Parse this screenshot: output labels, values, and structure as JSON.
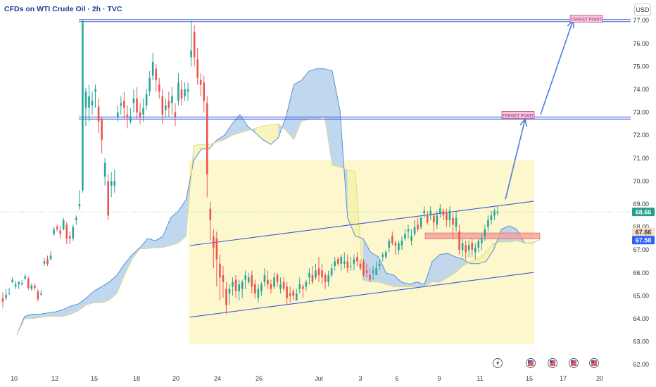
{
  "header": {
    "title": "CFDs on WTI Crude Oil · 2h · TVC",
    "currency": "USD"
  },
  "chart_data": {
    "type": "candlestick",
    "title": "CFDs on WTI Crude Oil · 2h · TVC",
    "y_ticks": [
      "77.00",
      "76.00",
      "75.00",
      "74.00",
      "73.00",
      "72.00",
      "71.00",
      "70.00",
      "69.00",
      "68.00",
      "67.00",
      "66.00",
      "65.00",
      "64.00",
      "63.00",
      "62.00"
    ],
    "x_ticks": [
      "10",
      "12",
      "15",
      "18",
      "20",
      "24",
      "26",
      "Jul",
      "3",
      "6",
      "9",
      "11",
      "15",
      "17",
      "20"
    ],
    "ylim": [
      62,
      77.5
    ],
    "price_labels": [
      {
        "text": "68.66",
        "value": 68.66,
        "color": "#22a08a"
      },
      {
        "text": "67.66",
        "value": 67.66,
        "color": "#f6dcc8"
      },
      {
        "text": "67.58",
        "value": 67.58,
        "color": "#2962ff"
      }
    ],
    "annotations": [
      {
        "text": "TARGET POINT",
        "value": 72.85,
        "color": "#d14a8a"
      },
      {
        "text": "TARGET POINT",
        "value": 77.05,
        "color": "#d14a8a"
      }
    ],
    "resistance_levels": [
      72.75,
      77.0
    ],
    "current_price": 68.66,
    "support_zone": [
      67.48,
      67.74
    ],
    "series": [
      {
        "name": "",
        "ohlc": [
          [
            64.9,
            64.75,
            65.15,
            64.5
          ],
          [
            64.9,
            65.05,
            65.3,
            64.8
          ],
          [
            65.1,
            65.1,
            65.35,
            65.05
          ],
          [
            65.6,
            65.7,
            65.8,
            65.55
          ],
          [
            65.4,
            65.5,
            65.65,
            65.3
          ],
          [
            65.5,
            65.6,
            65.65,
            65.3
          ],
          [
            65.5,
            65.55,
            65.7,
            65.45
          ],
          [
            65.75,
            65.85,
            65.95,
            65.7
          ],
          [
            65.75,
            65.35,
            65.85,
            65.25
          ],
          [
            65.3,
            65.45,
            65.55,
            65.2
          ],
          [
            65.45,
            65.35,
            65.55,
            65.25
          ],
          [
            65.2,
            64.85,
            65.3,
            64.75
          ],
          [
            65.05,
            65.1,
            65.25,
            65.0
          ],
          [
            66.4,
            66.5,
            66.65,
            66.3
          ],
          [
            66.6,
            66.4,
            66.75,
            66.3
          ],
          [
            66.6,
            66.75,
            66.95,
            66.55
          ],
          [
            67.7,
            67.9,
            68.0,
            67.6
          ],
          [
            68.0,
            67.9,
            68.1,
            67.8
          ],
          [
            67.85,
            67.7,
            68.05,
            67.5
          ],
          [
            67.9,
            68.3,
            68.4,
            67.85
          ],
          [
            68.1,
            67.5,
            68.2,
            67.25
          ],
          [
            67.6,
            67.5,
            67.8,
            67.25
          ],
          [
            67.5,
            68.0,
            68.1,
            67.4
          ],
          [
            68.3,
            68.4,
            68.5,
            68.1
          ],
          [
            68.9,
            69.0,
            69.6,
            68.75
          ],
          [
            69.6,
            77.0,
            77.0,
            69.5
          ],
          [
            73.2,
            73.9,
            74.05,
            72.4
          ],
          [
            73.2,
            73.7,
            74.2,
            72.6
          ],
          [
            73.3,
            73.5,
            73.9,
            72.9
          ],
          [
            73.9,
            74.0,
            74.2,
            73.2
          ],
          [
            73.25,
            72.6,
            73.6,
            72.1
          ],
          [
            72.7,
            71.8,
            72.8,
            71.2
          ],
          [
            70.2,
            70.8,
            71.0,
            69.8
          ],
          [
            70.0,
            68.5,
            70.3,
            68.3
          ],
          [
            69.8,
            70.0,
            70.4,
            69.3
          ],
          [
            69.8,
            70.0,
            70.5,
            69.5
          ],
          [
            72.8,
            73.0,
            73.3,
            72.6
          ],
          [
            73.3,
            73.4,
            73.7,
            72.9
          ],
          [
            73.5,
            73.2,
            73.9,
            72.7
          ],
          [
            72.9,
            72.8,
            73.3,
            72.3
          ],
          [
            72.6,
            72.8,
            73.2,
            72.5
          ],
          [
            73.4,
            73.6,
            74.0,
            73.0
          ],
          [
            73.6,
            73.0,
            74.1,
            72.7
          ],
          [
            73.0,
            72.8,
            73.4,
            72.5
          ],
          [
            72.9,
            73.2,
            73.6,
            72.6
          ],
          [
            73.3,
            73.8,
            74.0,
            73.1
          ],
          [
            73.9,
            74.5,
            74.8,
            73.7
          ],
          [
            74.6,
            75.2,
            75.6,
            74.4
          ],
          [
            74.9,
            74.4,
            75.1,
            73.9
          ],
          [
            74.2,
            73.9,
            74.5,
            73.6
          ],
          [
            73.7,
            72.9,
            74.0,
            72.5
          ],
          [
            73.1,
            73.3,
            73.6,
            72.8
          ],
          [
            73.5,
            73.2,
            73.9,
            72.8
          ],
          [
            73.4,
            73.7,
            74.1,
            72.9
          ],
          [
            73.0,
            72.8,
            73.4,
            72.4
          ],
          [
            73.5,
            74.3,
            74.7,
            73.3
          ],
          [
            74.0,
            73.6,
            74.4,
            73.3
          ],
          [
            73.7,
            74.0,
            74.3,
            73.5
          ],
          [
            73.9,
            74.0,
            74.3,
            73.5
          ],
          [
            75.4,
            75.7,
            77.0,
            75.0
          ],
          [
            76.5,
            75.4,
            76.8,
            75.0
          ],
          [
            75.3,
            74.5,
            75.8,
            74.2
          ],
          [
            74.4,
            74.2,
            74.7,
            73.7
          ],
          [
            74.3,
            73.5,
            74.6,
            73.0
          ],
          [
            73.4,
            70.3,
            73.7,
            69.3
          ],
          [
            68.8,
            68.3,
            69.1,
            67.4
          ],
          [
            67.6,
            67.1,
            67.9,
            66.2
          ],
          [
            67.5,
            66.6,
            67.8,
            65.4
          ],
          [
            66.4,
            65.8,
            66.8,
            64.8
          ],
          [
            65.9,
            65.6,
            66.3,
            64.9
          ],
          [
            65.3,
            64.6,
            65.6,
            64.2
          ],
          [
            65.1,
            65.3,
            65.5,
            64.6
          ],
          [
            65.4,
            65.6,
            65.8,
            65.0
          ],
          [
            65.7,
            65.2,
            65.9,
            64.9
          ],
          [
            65.2,
            65.5,
            65.7,
            64.8
          ],
          [
            65.3,
            65.6,
            65.7,
            64.9
          ],
          [
            65.7,
            65.9,
            66.1,
            65.3
          ],
          [
            65.6,
            65.8,
            66.0,
            65.5
          ],
          [
            65.9,
            65.4,
            66.1,
            65.1
          ],
          [
            65.5,
            65.1,
            65.7,
            64.9
          ],
          [
            64.9,
            65.3,
            65.5,
            64.7
          ],
          [
            65.2,
            65.5,
            65.6,
            65.0
          ],
          [
            65.6,
            65.9,
            66.2,
            65.4
          ],
          [
            65.7,
            65.5,
            66.1,
            65.3
          ],
          [
            65.5,
            65.3,
            65.7,
            65.1
          ],
          [
            65.4,
            65.8,
            66.0,
            65.3
          ],
          [
            65.9,
            65.6,
            66.0,
            65.4
          ],
          [
            65.3,
            65.5,
            65.8,
            65.1
          ],
          [
            65.6,
            65.3,
            65.8,
            65.2
          ],
          [
            65.4,
            64.9,
            65.6,
            64.6
          ],
          [
            65.1,
            65.0,
            65.4,
            64.7
          ],
          [
            65.2,
            65.0,
            65.3,
            64.8
          ],
          [
            64.8,
            65.1,
            65.3,
            64.8
          ],
          [
            65.3,
            65.5,
            65.8,
            65.1
          ],
          [
            65.4,
            65.3,
            65.5,
            64.9
          ],
          [
            65.4,
            65.6,
            65.7,
            65.2
          ],
          [
            65.8,
            66.0,
            66.2,
            65.5
          ],
          [
            65.9,
            65.6,
            66.3,
            65.5
          ],
          [
            65.8,
            66.1,
            66.4,
            65.7
          ],
          [
            66.2,
            65.9,
            66.7,
            65.6
          ],
          [
            66.1,
            65.8,
            66.4,
            65.5
          ],
          [
            65.9,
            65.6,
            66.0,
            65.3
          ],
          [
            65.6,
            65.9,
            66.1,
            65.4
          ],
          [
            65.9,
            66.2,
            66.4,
            65.8
          ],
          [
            66.3,
            66.5,
            66.7,
            66.1
          ],
          [
            66.6,
            66.4,
            66.7,
            66.3
          ],
          [
            66.4,
            66.7,
            66.8,
            66.1
          ],
          [
            66.4,
            66.5,
            66.9,
            66.2
          ],
          [
            66.5,
            66.2,
            66.8,
            66.0
          ],
          [
            66.3,
            66.3,
            66.7,
            66.1
          ],
          [
            66.4,
            66.6,
            66.8,
            66.1
          ],
          [
            66.7,
            66.5,
            66.9,
            66.3
          ],
          [
            66.4,
            66.2,
            66.6,
            66.1
          ],
          [
            66.5,
            65.9,
            66.6,
            65.8
          ],
          [
            66.1,
            66.0,
            66.4,
            65.8
          ],
          [
            65.9,
            65.7,
            66.2,
            65.6
          ],
          [
            66.0,
            66.1,
            66.3,
            65.7
          ],
          [
            65.9,
            66.2,
            66.5,
            65.9
          ],
          [
            66.3,
            66.4,
            66.6,
            66.1
          ],
          [
            66.7,
            66.8,
            66.9,
            66.5
          ],
          [
            66.7,
            66.9,
            67.0,
            66.6
          ],
          [
            67.1,
            67.4,
            67.5,
            66.9
          ],
          [
            67.6,
            67.3,
            67.8,
            67.2
          ],
          [
            67.3,
            67.2,
            67.4,
            66.8
          ],
          [
            67.0,
            67.3,
            67.4,
            66.8
          ],
          [
            67.2,
            67.4,
            67.6,
            67.0
          ],
          [
            67.5,
            67.7,
            67.9,
            67.4
          ],
          [
            67.8,
            67.9,
            68.1,
            67.5
          ],
          [
            67.4,
            67.6,
            67.9,
            67.2
          ],
          [
            67.7,
            68.0,
            68.3,
            67.6
          ],
          [
            68.1,
            67.9,
            68.4,
            67.8
          ],
          [
            68.0,
            68.4,
            68.5,
            67.9
          ],
          [
            68.6,
            68.7,
            68.9,
            68.4
          ],
          [
            68.5,
            68.2,
            68.7,
            68.1
          ],
          [
            68.5,
            68.7,
            68.9,
            68.3
          ],
          [
            68.5,
            68.2,
            68.6,
            67.8
          ],
          [
            68.1,
            68.5,
            68.7,
            67.9
          ],
          [
            68.6,
            68.8,
            69.0,
            68.4
          ],
          [
            68.7,
            68.5,
            68.8,
            68.3
          ],
          [
            68.6,
            68.3,
            68.8,
            68.0
          ],
          [
            68.3,
            68.7,
            68.9,
            68.0
          ],
          [
            68.4,
            68.1,
            68.6,
            67.5
          ],
          [
            68.0,
            68.4,
            68.7,
            67.8
          ],
          [
            67.8,
            67.0,
            68.1,
            66.8
          ],
          [
            67.0,
            67.3,
            67.5,
            66.7
          ],
          [
            67.2,
            66.9,
            67.4,
            66.6
          ],
          [
            67.0,
            67.2,
            67.4,
            66.7
          ],
          [
            67.3,
            67.0,
            67.5,
            66.7
          ],
          [
            66.9,
            67.1,
            67.3,
            66.6
          ],
          [
            67.1,
            67.4,
            67.5,
            66.9
          ],
          [
            67.3,
            67.5,
            67.7,
            67.0
          ],
          [
            67.6,
            67.9,
            68.1,
            67.4
          ],
          [
            68.0,
            68.3,
            68.5,
            67.8
          ],
          [
            68.3,
            68.5,
            68.7,
            68.1
          ],
          [
            68.5,
            68.7,
            68.8,
            68.3
          ],
          [
            68.6,
            68.66,
            68.9,
            68.5
          ]
        ]
      }
    ],
    "cloud": {
      "span_a": [
        63.3,
        64.1,
        64.2,
        64.2,
        64.25,
        64.3,
        64.4,
        64.55,
        64.65,
        64.9,
        65.2,
        65.4,
        65.6,
        65.9,
        66.4,
        66.8,
        67.1,
        67.5,
        67.4,
        67.6,
        68.4,
        68.7,
        69.2,
        70.9,
        71.4,
        71.4,
        71.8,
        72.0,
        72.5,
        72.9,
        72.4,
        72.1,
        71.8,
        71.6,
        71.9,
        72.8,
        74.2,
        74.4,
        74.8,
        74.9,
        74.9,
        74.8,
        73.1,
        68.4,
        67.6,
        67.5,
        66.9,
        66.7,
        66.0,
        65.9,
        65.6,
        65.5,
        65.6,
        65.5,
        66.5,
        66.8,
        66.85,
        66.7,
        66.6,
        66.4,
        66.4,
        66.5,
        67.0,
        67.9,
        68.05,
        67.9,
        67.3,
        67.3,
        67.45
      ],
      "span_b": [
        63.3,
        64.0,
        64.0,
        64.05,
        64.1,
        64.1,
        64.1,
        64.2,
        64.35,
        64.6,
        64.7,
        64.7,
        64.8,
        65.1,
        65.9,
        66.6,
        67.05,
        67.05,
        67.1,
        67.1,
        67.2,
        67.3,
        67.6,
        71.55,
        71.6,
        71.6,
        71.7,
        71.8,
        72.0,
        72.1,
        72.2,
        72.3,
        72.4,
        72.45,
        72.5,
        72.2,
        71.8,
        72.6,
        72.7,
        72.7,
        72.8,
        70.7,
        70.6,
        70.5,
        70.4,
        65.7,
        65.6,
        65.6,
        65.5,
        65.4,
        65.4,
        65.4,
        65.4,
        65.4,
        65.6,
        65.6,
        65.8,
        66.0,
        66.3,
        66.5,
        66.6,
        66.9,
        67.3,
        67.35,
        67.35,
        67.4,
        67.3,
        67.3,
        67.45
      ]
    },
    "channel": {
      "upper": [
        [
          0,
          67.19
        ],
        [
          1,
          69.12
        ]
      ],
      "lower": [
        [
          0,
          64.07
        ],
        [
          1,
          66.02
        ]
      ]
    },
    "highlight_zone": [
      62.91,
      70.91
    ],
    "grid": false,
    "legend": "none"
  }
}
